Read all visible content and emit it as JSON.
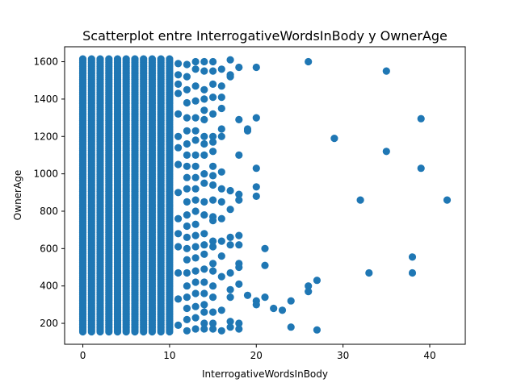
{
  "chart_data": {
    "type": "scatter",
    "title": "Scatterplot entre InterrogativeWordsInBody y OwnerAge",
    "xlabel": "InterrogativeWordsInBody",
    "ylabel": "OwnerAge",
    "xlim": [
      -2.1,
      44.1
    ],
    "ylim": [
      88,
      1680
    ],
    "xticks": [
      0,
      10,
      20,
      30,
      40
    ],
    "yticks": [
      200,
      400,
      600,
      800,
      1000,
      1200,
      1400,
      1600
    ],
    "grid": false,
    "legend": "none",
    "marker_color": "#1f77b4",
    "dense_columns": {
      "x": [
        0,
        1,
        2,
        3,
        4,
        5,
        6,
        7,
        8,
        9,
        10
      ],
      "y_range": [
        155,
        1615
      ],
      "note_free": true
    },
    "points": [
      {
        "x": 11,
        "y": 1590
      },
      {
        "x": 11,
        "y": 1530
      },
      {
        "x": 11,
        "y": 1430
      },
      {
        "x": 11,
        "y": 1320
      },
      {
        "x": 11,
        "y": 1200
      },
      {
        "x": 11,
        "y": 1050
      },
      {
        "x": 11,
        "y": 900
      },
      {
        "x": 11,
        "y": 760
      },
      {
        "x": 11,
        "y": 610
      },
      {
        "x": 11,
        "y": 470
      },
      {
        "x": 11,
        "y": 330
      },
      {
        "x": 11,
        "y": 190
      },
      {
        "x": 11,
        "y": 1480
      },
      {
        "x": 11,
        "y": 1140
      },
      {
        "x": 11,
        "y": 680
      },
      {
        "x": 12,
        "y": 1585
      },
      {
        "x": 12,
        "y": 1520
      },
      {
        "x": 12,
        "y": 1450
      },
      {
        "x": 12,
        "y": 1380
      },
      {
        "x": 12,
        "y": 1300
      },
      {
        "x": 12,
        "y": 1230
      },
      {
        "x": 12,
        "y": 1160
      },
      {
        "x": 12,
        "y": 1100
      },
      {
        "x": 12,
        "y": 1040
      },
      {
        "x": 12,
        "y": 980
      },
      {
        "x": 12,
        "y": 920
      },
      {
        "x": 12,
        "y": 850
      },
      {
        "x": 12,
        "y": 780
      },
      {
        "x": 12,
        "y": 720
      },
      {
        "x": 12,
        "y": 660
      },
      {
        "x": 12,
        "y": 600
      },
      {
        "x": 12,
        "y": 540
      },
      {
        "x": 12,
        "y": 470
      },
      {
        "x": 12,
        "y": 400
      },
      {
        "x": 12,
        "y": 340
      },
      {
        "x": 12,
        "y": 280
      },
      {
        "x": 12,
        "y": 220
      },
      {
        "x": 12,
        "y": 160
      },
      {
        "x": 13,
        "y": 1600
      },
      {
        "x": 13,
        "y": 1560
      },
      {
        "x": 13,
        "y": 1470
      },
      {
        "x": 13,
        "y": 1390
      },
      {
        "x": 13,
        "y": 1300
      },
      {
        "x": 13,
        "y": 1230
      },
      {
        "x": 13,
        "y": 1180
      },
      {
        "x": 13,
        "y": 1100
      },
      {
        "x": 13,
        "y": 1040
      },
      {
        "x": 13,
        "y": 980
      },
      {
        "x": 13,
        "y": 920
      },
      {
        "x": 13,
        "y": 860
      },
      {
        "x": 13,
        "y": 800
      },
      {
        "x": 13,
        "y": 730
      },
      {
        "x": 13,
        "y": 670
      },
      {
        "x": 13,
        "y": 610
      },
      {
        "x": 13,
        "y": 550
      },
      {
        "x": 13,
        "y": 480
      },
      {
        "x": 13,
        "y": 420
      },
      {
        "x": 13,
        "y": 360
      },
      {
        "x": 13,
        "y": 290
      },
      {
        "x": 13,
        "y": 230
      },
      {
        "x": 13,
        "y": 170
      },
      {
        "x": 14,
        "y": 1600
      },
      {
        "x": 14,
        "y": 1550
      },
      {
        "x": 14,
        "y": 1450
      },
      {
        "x": 14,
        "y": 1400
      },
      {
        "x": 14,
        "y": 1340
      },
      {
        "x": 14,
        "y": 1290
      },
      {
        "x": 14,
        "y": 1200
      },
      {
        "x": 14,
        "y": 1160
      },
      {
        "x": 14,
        "y": 1100
      },
      {
        "x": 14,
        "y": 1000
      },
      {
        "x": 14,
        "y": 950
      },
      {
        "x": 14,
        "y": 850
      },
      {
        "x": 14,
        "y": 780
      },
      {
        "x": 14,
        "y": 680
      },
      {
        "x": 14,
        "y": 620
      },
      {
        "x": 14,
        "y": 570
      },
      {
        "x": 14,
        "y": 490
      },
      {
        "x": 14,
        "y": 420
      },
      {
        "x": 14,
        "y": 360
      },
      {
        "x": 14,
        "y": 300
      },
      {
        "x": 14,
        "y": 260
      },
      {
        "x": 14,
        "y": 200
      },
      {
        "x": 14,
        "y": 170
      },
      {
        "x": 15,
        "y": 1600
      },
      {
        "x": 15,
        "y": 1550
      },
      {
        "x": 15,
        "y": 1480
      },
      {
        "x": 15,
        "y": 1410
      },
      {
        "x": 15,
        "y": 1320
      },
      {
        "x": 15,
        "y": 1200
      },
      {
        "x": 15,
        "y": 1170
      },
      {
        "x": 15,
        "y": 1120
      },
      {
        "x": 15,
        "y": 1040
      },
      {
        "x": 15,
        "y": 990
      },
      {
        "x": 15,
        "y": 940
      },
      {
        "x": 15,
        "y": 860
      },
      {
        "x": 15,
        "y": 770
      },
      {
        "x": 15,
        "y": 750
      },
      {
        "x": 15,
        "y": 640
      },
      {
        "x": 15,
        "y": 610
      },
      {
        "x": 15,
        "y": 520
      },
      {
        "x": 15,
        "y": 480
      },
      {
        "x": 15,
        "y": 400
      },
      {
        "x": 15,
        "y": 340
      },
      {
        "x": 15,
        "y": 260
      },
      {
        "x": 15,
        "y": 200
      },
      {
        "x": 15,
        "y": 170
      },
      {
        "x": 16,
        "y": 1560
      },
      {
        "x": 16,
        "y": 1470
      },
      {
        "x": 16,
        "y": 1410
      },
      {
        "x": 16,
        "y": 1350
      },
      {
        "x": 16,
        "y": 1240
      },
      {
        "x": 16,
        "y": 1200
      },
      {
        "x": 16,
        "y": 1010
      },
      {
        "x": 16,
        "y": 920
      },
      {
        "x": 16,
        "y": 850
      },
      {
        "x": 16,
        "y": 760
      },
      {
        "x": 16,
        "y": 640
      },
      {
        "x": 16,
        "y": 560
      },
      {
        "x": 16,
        "y": 450
      },
      {
        "x": 16,
        "y": 270
      },
      {
        "x": 16,
        "y": 160
      },
      {
        "x": 17,
        "y": 1610
      },
      {
        "x": 17,
        "y": 1530
      },
      {
        "x": 17,
        "y": 1520
      },
      {
        "x": 17,
        "y": 910
      },
      {
        "x": 17,
        "y": 810
      },
      {
        "x": 17,
        "y": 660
      },
      {
        "x": 17,
        "y": 620
      },
      {
        "x": 17,
        "y": 470
      },
      {
        "x": 17,
        "y": 380
      },
      {
        "x": 17,
        "y": 340
      },
      {
        "x": 17,
        "y": 210
      },
      {
        "x": 17,
        "y": 180
      },
      {
        "x": 18,
        "y": 1570
      },
      {
        "x": 18,
        "y": 1290
      },
      {
        "x": 18,
        "y": 1100
      },
      {
        "x": 18,
        "y": 890
      },
      {
        "x": 18,
        "y": 860
      },
      {
        "x": 18,
        "y": 670
      },
      {
        "x": 18,
        "y": 620
      },
      {
        "x": 18,
        "y": 520
      },
      {
        "x": 18,
        "y": 500
      },
      {
        "x": 18,
        "y": 410
      },
      {
        "x": 18,
        "y": 200
      },
      {
        "x": 18,
        "y": 170
      },
      {
        "x": 19,
        "y": 1240
      },
      {
        "x": 19,
        "y": 1230
      },
      {
        "x": 19,
        "y": 350
      },
      {
        "x": 20,
        "y": 1570
      },
      {
        "x": 20,
        "y": 1300
      },
      {
        "x": 20,
        "y": 1030
      },
      {
        "x": 20,
        "y": 930
      },
      {
        "x": 20,
        "y": 880
      },
      {
        "x": 20,
        "y": 320
      },
      {
        "x": 20,
        "y": 300
      },
      {
        "x": 21,
        "y": 600
      },
      {
        "x": 21,
        "y": 510
      },
      {
        "x": 21,
        "y": 340
      },
      {
        "x": 22,
        "y": 280
      },
      {
        "x": 23,
        "y": 270
      },
      {
        "x": 24,
        "y": 320
      },
      {
        "x": 24,
        "y": 180
      },
      {
        "x": 26,
        "y": 1600
      },
      {
        "x": 26,
        "y": 400
      },
      {
        "x": 26,
        "y": 370
      },
      {
        "x": 27,
        "y": 430
      },
      {
        "x": 27,
        "y": 165
      },
      {
        "x": 29,
        "y": 1190
      },
      {
        "x": 32,
        "y": 860
      },
      {
        "x": 33,
        "y": 470
      },
      {
        "x": 35,
        "y": 1550
      },
      {
        "x": 35,
        "y": 1120
      },
      {
        "x": 38,
        "y": 555
      },
      {
        "x": 38,
        "y": 470
      },
      {
        "x": 39,
        "y": 1295
      },
      {
        "x": 39,
        "y": 1030
      },
      {
        "x": 42,
        "y": 860
      }
    ]
  }
}
